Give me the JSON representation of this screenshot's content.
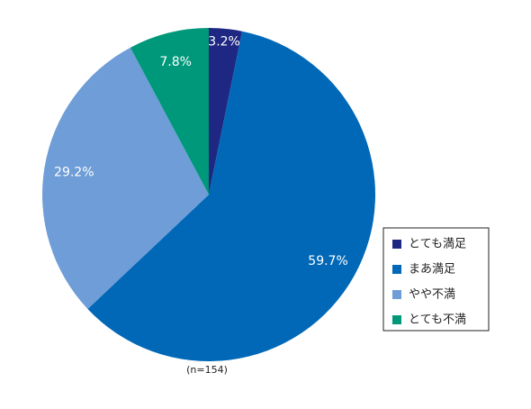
{
  "chart_data": {
    "type": "pie",
    "categories": [
      "とても満足",
      "まあ満足",
      "やや不満",
      "とても不満"
    ],
    "values": [
      3.2,
      59.7,
      29.2,
      7.8
    ],
    "value_labels": [
      "3.2%",
      "59.7%",
      "29.2%",
      "7.8%"
    ],
    "colors": [
      "#1e2782",
      "#0068b7",
      "#6e9dd7",
      "#00987a"
    ],
    "annotation": "(n=154)",
    "legend": "right"
  }
}
